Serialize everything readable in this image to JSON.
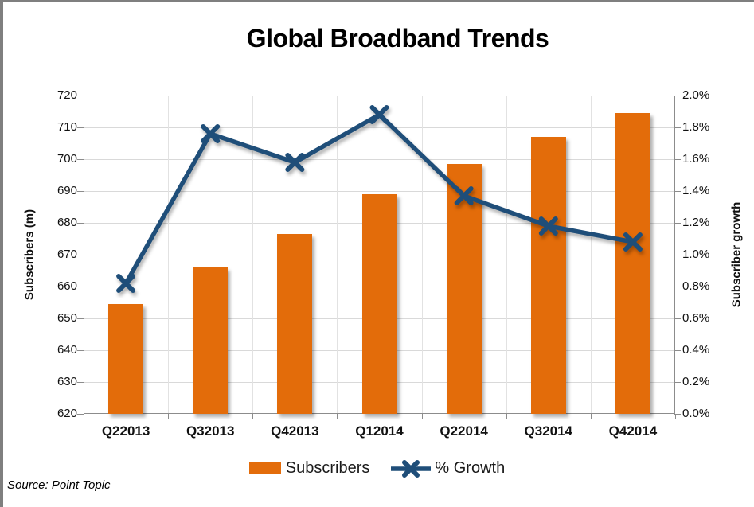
{
  "title": "Global Broadband Trends",
  "source": "Source: Point Topic",
  "colors": {
    "bar": "#E36C0A",
    "line": "#1F4E79",
    "grid": "#D9D9D9",
    "axis": "#8C8C8C",
    "frame_edge": "#7F7F7F",
    "text": "#111111"
  },
  "legend": {
    "items": [
      {
        "label": "Subscribers",
        "marker": "orange-bar-swatch"
      },
      {
        "label": "% Growth",
        "marker": "blue-x-line-marker"
      }
    ]
  },
  "chart_data": {
    "type": "bar",
    "title": "Global Broadband Trends",
    "categories": [
      "Q22013",
      "Q32013",
      "Q42013",
      "Q12014",
      "Q22014",
      "Q32014",
      "Q42014"
    ],
    "series": [
      {
        "name": "Subscribers",
        "type": "bar",
        "axis": "left",
        "color": "#E36C0A",
        "values": [
          654.5,
          666,
          676.5,
          689,
          698.5,
          707,
          714.5
        ]
      },
      {
        "name": "% Growth",
        "type": "line",
        "axis": "right",
        "color": "#1F4E79",
        "marker": "x",
        "values": [
          0.82,
          1.76,
          1.58,
          1.88,
          1.37,
          1.18,
          1.08
        ]
      }
    ],
    "left_axis": {
      "label": "Subscribers (m)",
      "min": 620,
      "max": 720,
      "step": 10,
      "tick_labels": [
        "720",
        "710",
        "700",
        "690",
        "680",
        "670",
        "660",
        "650",
        "640",
        "630",
        "620"
      ]
    },
    "right_axis": {
      "label": "Subscriber growth",
      "min": 0.0,
      "max": 2.0,
      "step": 0.2,
      "format": "percent",
      "tick_labels": [
        "2.0%",
        "1.8%",
        "1.6%",
        "1.4%",
        "1.2%",
        "1.0%",
        "0.8%",
        "0.6%",
        "0.4%",
        "0.2%",
        "0.0%"
      ]
    },
    "grid": true,
    "legend_position": "bottom"
  }
}
